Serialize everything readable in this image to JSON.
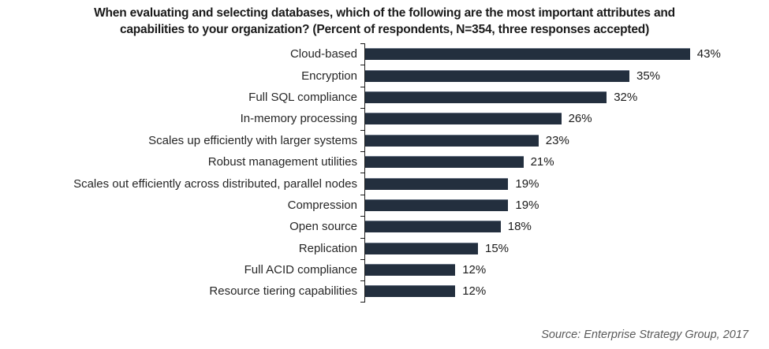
{
  "title": "When evaluating and selecting databases, which of the following are the most important attributes and capabilities to your organization? (Percent of respondents, N=354, three responses accepted)",
  "source": "Source: Enterprise Strategy Group, 2017",
  "colors": {
    "bar": "#232F3E",
    "title_text": "#1A1A1A",
    "category_text": "#262626",
    "value_text": "#1A1A1A",
    "source_text": "#595959",
    "axis": "#1A1A1A"
  },
  "chart_data": {
    "type": "bar",
    "orientation": "horizontal",
    "title": "When evaluating and selecting databases, which of the following are the most important attributes and capabilities to your organization? (Percent of respondents, N=354, three responses accepted)",
    "categories": [
      "Cloud-based",
      "Encryption",
      "Full SQL compliance",
      "In-memory processing",
      "Scales up efficiently with larger systems",
      "Robust management utilities",
      "Scales out efficiently across distributed, parallel nodes",
      "Compression",
      "Open source",
      "Replication",
      "Full ACID compliance",
      "Resource tiering capabilities"
    ],
    "values": [
      43,
      35,
      32,
      26,
      23,
      21,
      19,
      19,
      18,
      15,
      12,
      12
    ],
    "value_suffix": "%",
    "xlabel": "",
    "ylabel": "",
    "xlim": [
      0,
      45
    ],
    "grid": false,
    "legend": false,
    "data_labels": true,
    "source": "Source: Enterprise Strategy Group, 2017"
  }
}
